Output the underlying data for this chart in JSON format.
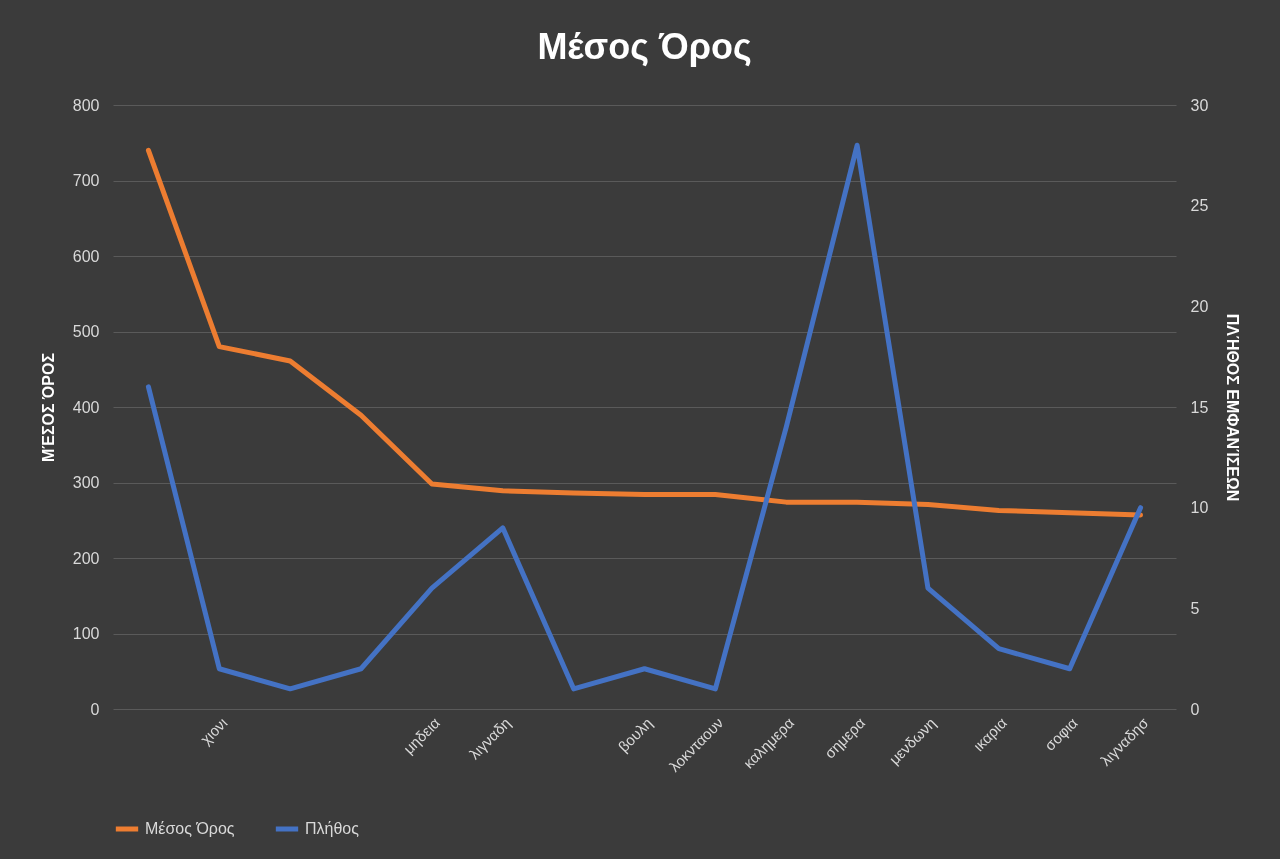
{
  "chart_data": {
    "type": "line",
    "title": "Μέσος Όρος",
    "ylabel": "ΜΈΣΟΣ ΌΡΟΣ",
    "y2label": "ΠΛΉΘΟΣ ΕΜΦΑΝΊΣΕΩΝ",
    "categories": [
      null,
      "χιονι",
      null,
      null,
      "μηδεια",
      "λιγναδη",
      null,
      "βουλη",
      "λοκνταουν",
      "καλημερα",
      "σημερα",
      "μενδωνη",
      "ικαρια",
      "σοφια",
      "λιγναδησ"
    ],
    "series": [
      {
        "name": "Μέσος Όρος",
        "color": "#ed7d31",
        "values": [
          740,
          480,
          461,
          389,
          298,
          289,
          286,
          284,
          284,
          274,
          274,
          271,
          263,
          260,
          257
        ]
      },
      {
        "name": "Πλήθος",
        "color": "#4472c4",
        "axis": "y2",
        "values": [
          16,
          2,
          1,
          2,
          6,
          9,
          1,
          2,
          1,
          14,
          28,
          6,
          3,
          2,
          10
        ]
      }
    ],
    "ylim": [
      0,
      800
    ],
    "yticks": [
      0,
      100,
      200,
      300,
      400,
      500,
      600,
      700,
      800
    ],
    "y2lim": [
      0,
      30
    ],
    "y2ticks": [
      0,
      5,
      10,
      15,
      20,
      25,
      30
    ],
    "grid": "y",
    "legend": "bottom",
    "line_style": "solid"
  }
}
